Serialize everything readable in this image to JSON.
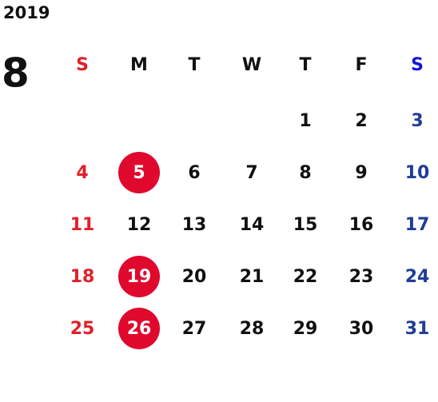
{
  "year": "2019",
  "month": "8",
  "weekdays": [
    "S",
    "M",
    "T",
    "W",
    "T",
    "F",
    "S"
  ],
  "weeks": [
    [
      null,
      null,
      null,
      null,
      {
        "day": 1
      },
      {
        "day": 2
      },
      {
        "day": 3
      }
    ],
    [
      {
        "day": 4
      },
      {
        "day": 5,
        "holiday": true
      },
      {
        "day": 6
      },
      {
        "day": 7
      },
      {
        "day": 8
      },
      {
        "day": 9
      },
      {
        "day": 10
      }
    ],
    [
      {
        "day": 11
      },
      {
        "day": 12
      },
      {
        "day": 13
      },
      {
        "day": 14
      },
      {
        "day": 15
      },
      {
        "day": 16
      },
      {
        "day": 17
      }
    ],
    [
      {
        "day": 18
      },
      {
        "day": 19,
        "holiday": true
      },
      {
        "day": 20
      },
      {
        "day": 21
      },
      {
        "day": 22
      },
      {
        "day": 23
      },
      {
        "day": 24
      }
    ],
    [
      {
        "day": 25
      },
      {
        "day": 26,
        "holiday": true
      },
      {
        "day": 27
      },
      {
        "day": 28
      },
      {
        "day": 29
      },
      {
        "day": 30
      },
      {
        "day": 31
      }
    ]
  ],
  "colors": {
    "sunday": "#e0202a",
    "saturday_header": "#1414d8",
    "saturday": "#1f3c96",
    "weekday": "#111111",
    "holiday_fill": "#e0082d",
    "holiday_text": "#ffffff"
  }
}
